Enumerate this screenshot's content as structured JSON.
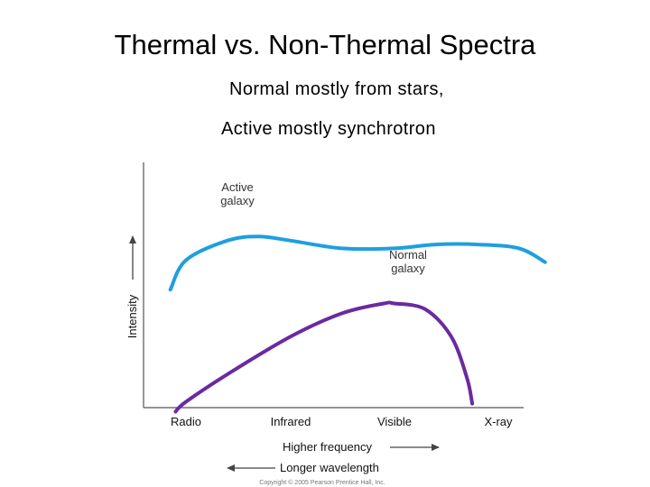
{
  "slide": {
    "title": "Thermal vs. Non-Thermal Spectra",
    "subtitle_lines": [
      "Normal mostly from stars,",
      "Active mostly synchrotron"
    ]
  },
  "chart_data": {
    "type": "line",
    "x_axis": {
      "categories": [
        "Radio",
        "Infrared",
        "Visible",
        "X-ray"
      ],
      "label": "Higher frequency",
      "secondary_label": "Longer wavelength",
      "arrow_direction_label": "right",
      "arrow_direction_secondary": "left"
    },
    "y_axis": {
      "label": "Intensity",
      "ticks": false
    },
    "grid": false,
    "series": [
      {
        "name": "Active galaxy",
        "label_lines": [
          "Active",
          "galaxy"
        ],
        "color": "#1e9fdf",
        "points": [
          [
            -0.15,
            0.6
          ],
          [
            0.0,
            0.75
          ],
          [
            0.4,
            0.85
          ],
          [
            0.7,
            0.87
          ],
          [
            1.0,
            0.85
          ],
          [
            1.5,
            0.81
          ],
          [
            2.0,
            0.81
          ],
          [
            2.4,
            0.83
          ],
          [
            2.8,
            0.83
          ],
          [
            3.2,
            0.81
          ],
          [
            3.45,
            0.74
          ]
        ]
      },
      {
        "name": "Normal galaxy",
        "label_lines": [
          "Normal",
          "galaxy"
        ],
        "color": "#6a2aa0",
        "points": [
          [
            -0.1,
            -0.02
          ],
          [
            0.0,
            0.03
          ],
          [
            0.4,
            0.17
          ],
          [
            1.0,
            0.36
          ],
          [
            1.5,
            0.48
          ],
          [
            1.9,
            0.53
          ],
          [
            2.0,
            0.53
          ],
          [
            2.3,
            0.5
          ],
          [
            2.55,
            0.36
          ],
          [
            2.7,
            0.15
          ],
          [
            2.75,
            0.02
          ]
        ]
      }
    ],
    "footer": "Copyright © 2005 Pearson Prentice Hall, Inc."
  },
  "colors": {
    "active_series": "#1e9fdf",
    "normal_series": "#6a2aa0",
    "axis": "#555555"
  }
}
